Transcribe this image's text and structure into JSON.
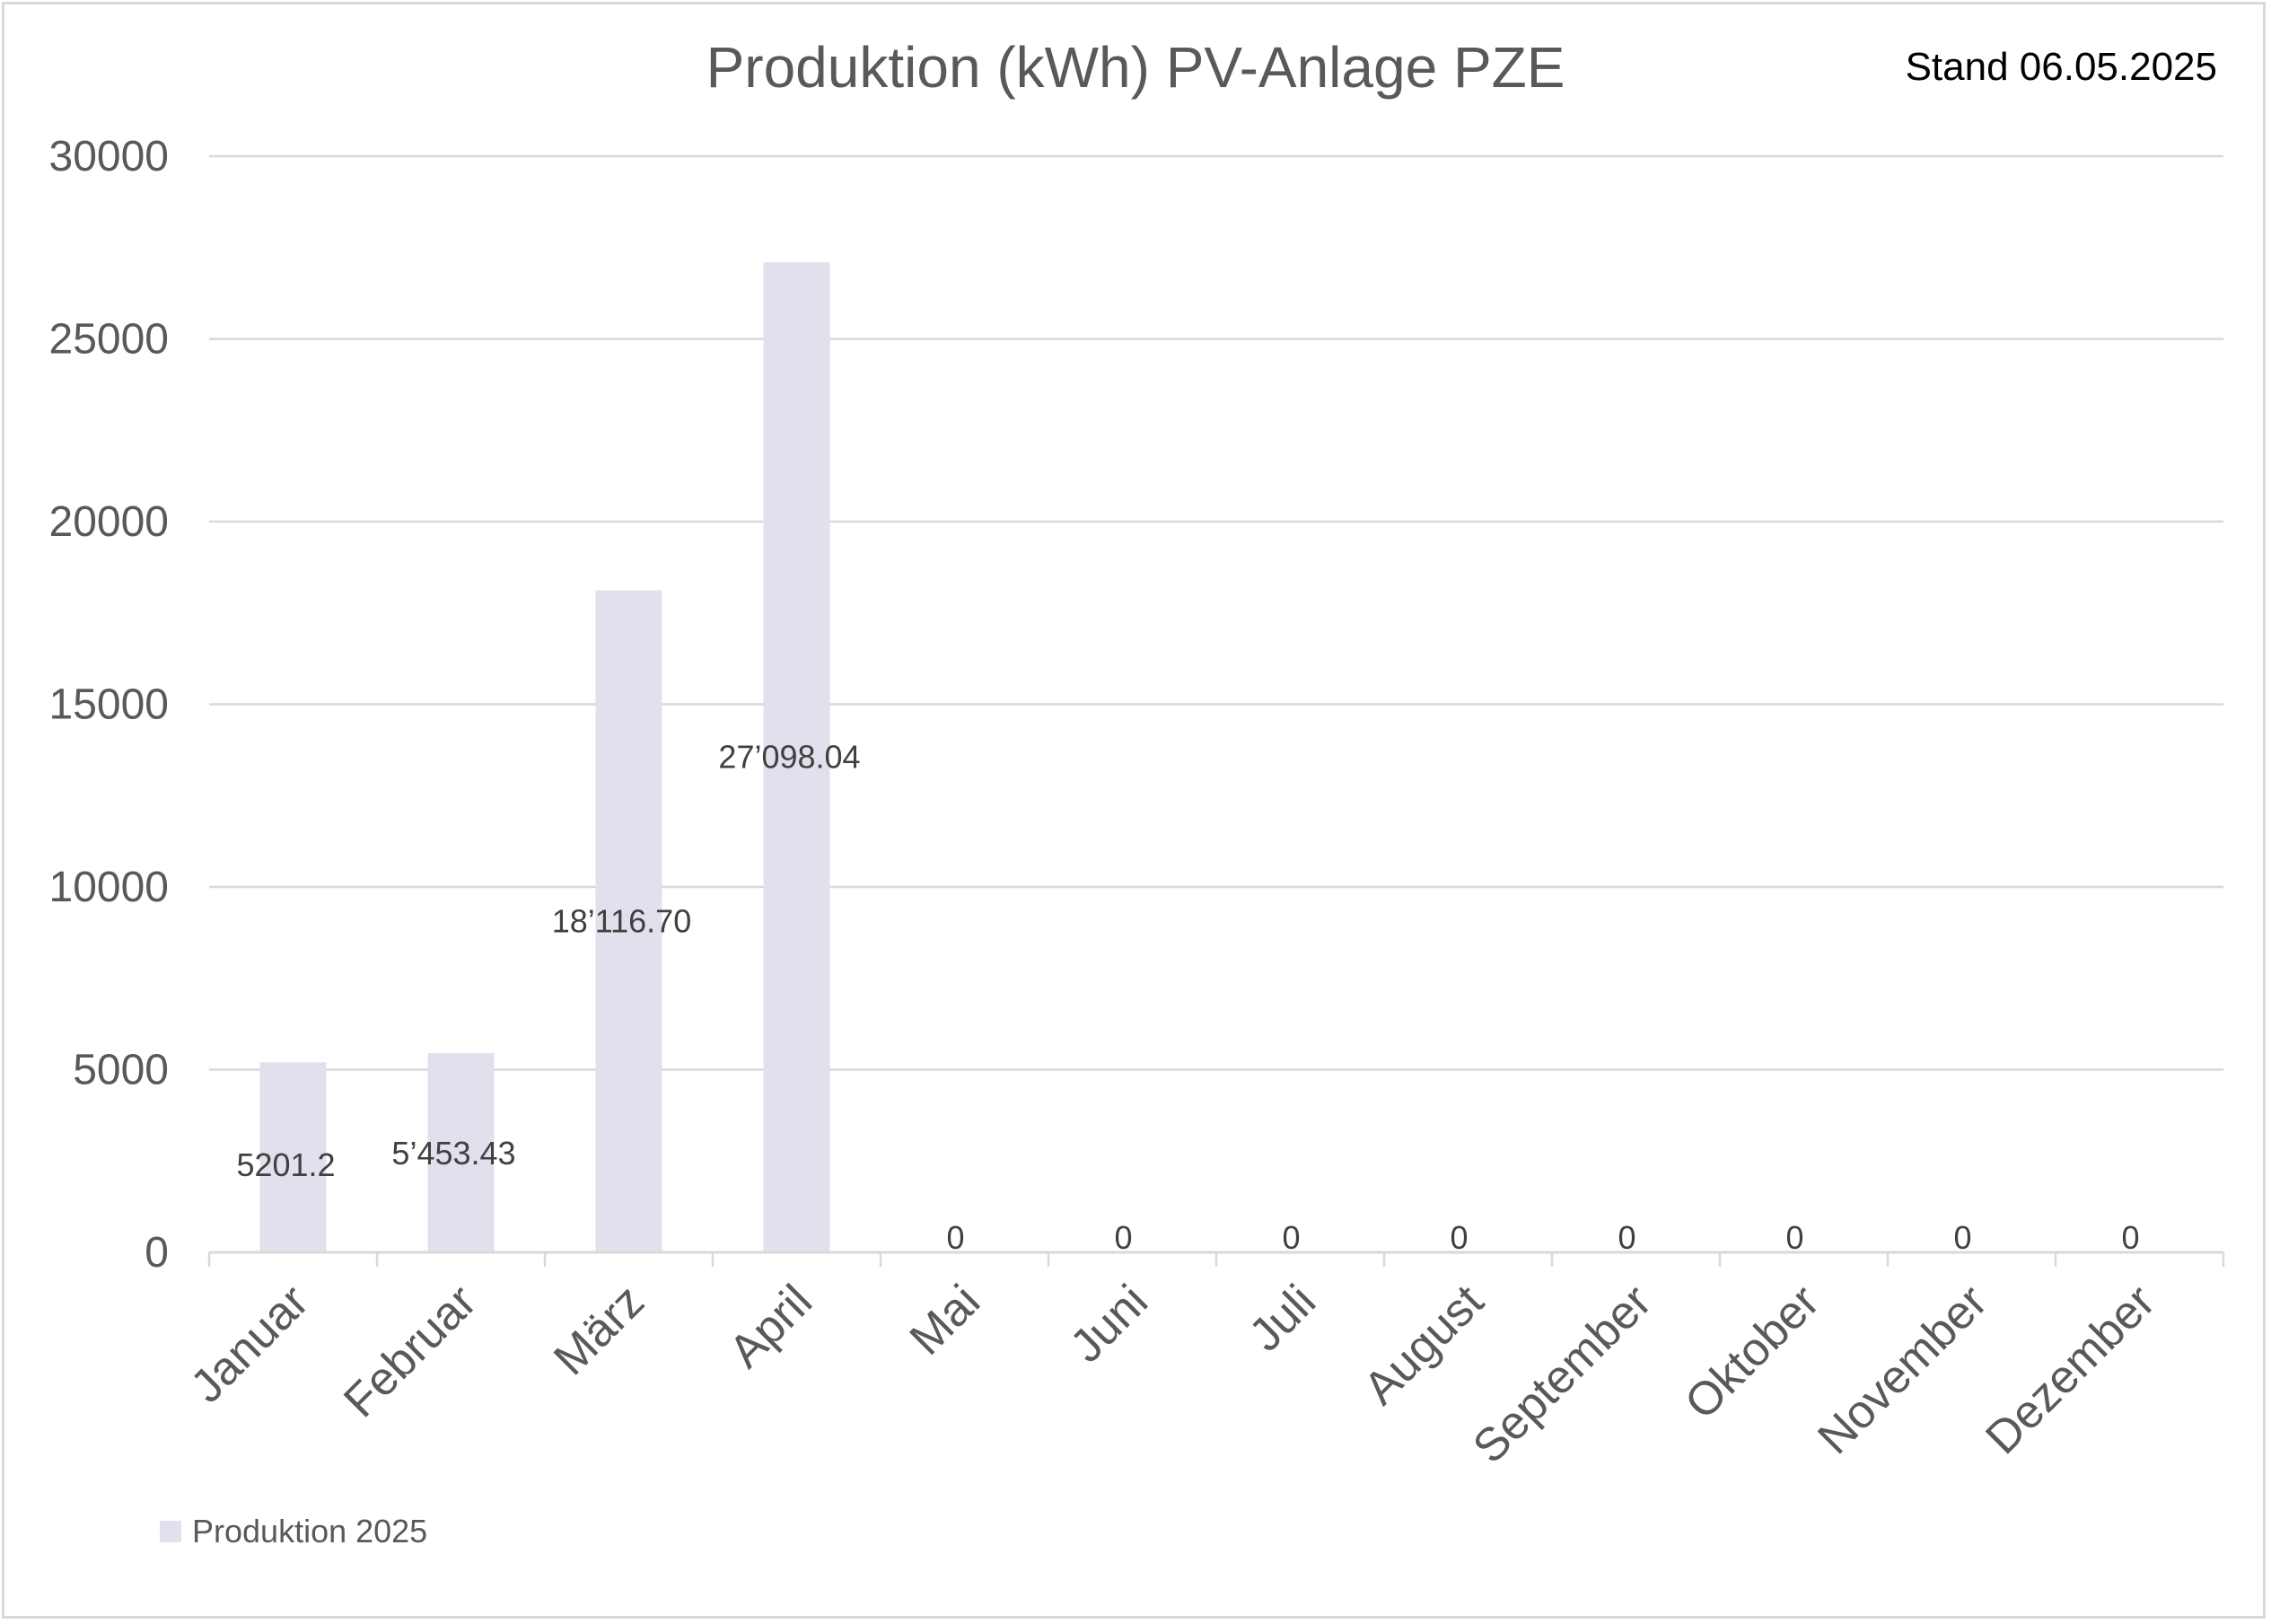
{
  "title": "Produktion (kWh) PV-Anlage PZE",
  "stand": "Stand 06.05.2025",
  "colors": {
    "bar": "#e3dfec",
    "grid": "#d9d9d9",
    "axis_text": "#595959",
    "label_text": "#404040"
  },
  "chart_data": {
    "type": "bar",
    "categories": [
      "Januar",
      "Februar",
      "März",
      "April",
      "Mai",
      "Juni",
      "Juli",
      "August",
      "September",
      "Oktober",
      "November",
      "Dezember"
    ],
    "series": [
      {
        "name": "Produktion 2025",
        "values": [
          5201.2,
          5453.43,
          18116.7,
          27098.04,
          0,
          0,
          0,
          0,
          0,
          0,
          0,
          0
        ],
        "data_labels": [
          "5201.2",
          "5’453.43",
          "18’116.70",
          "27’098.04",
          "0",
          "0",
          "0",
          "0",
          "0",
          "0",
          "0",
          "0"
        ]
      }
    ],
    "ylim": [
      0,
      30000
    ],
    "yticks": [
      "0",
      "5000",
      "10000",
      "15000",
      "20000",
      "25000",
      "30000"
    ],
    "grid": true,
    "legend": "bottom-left"
  }
}
